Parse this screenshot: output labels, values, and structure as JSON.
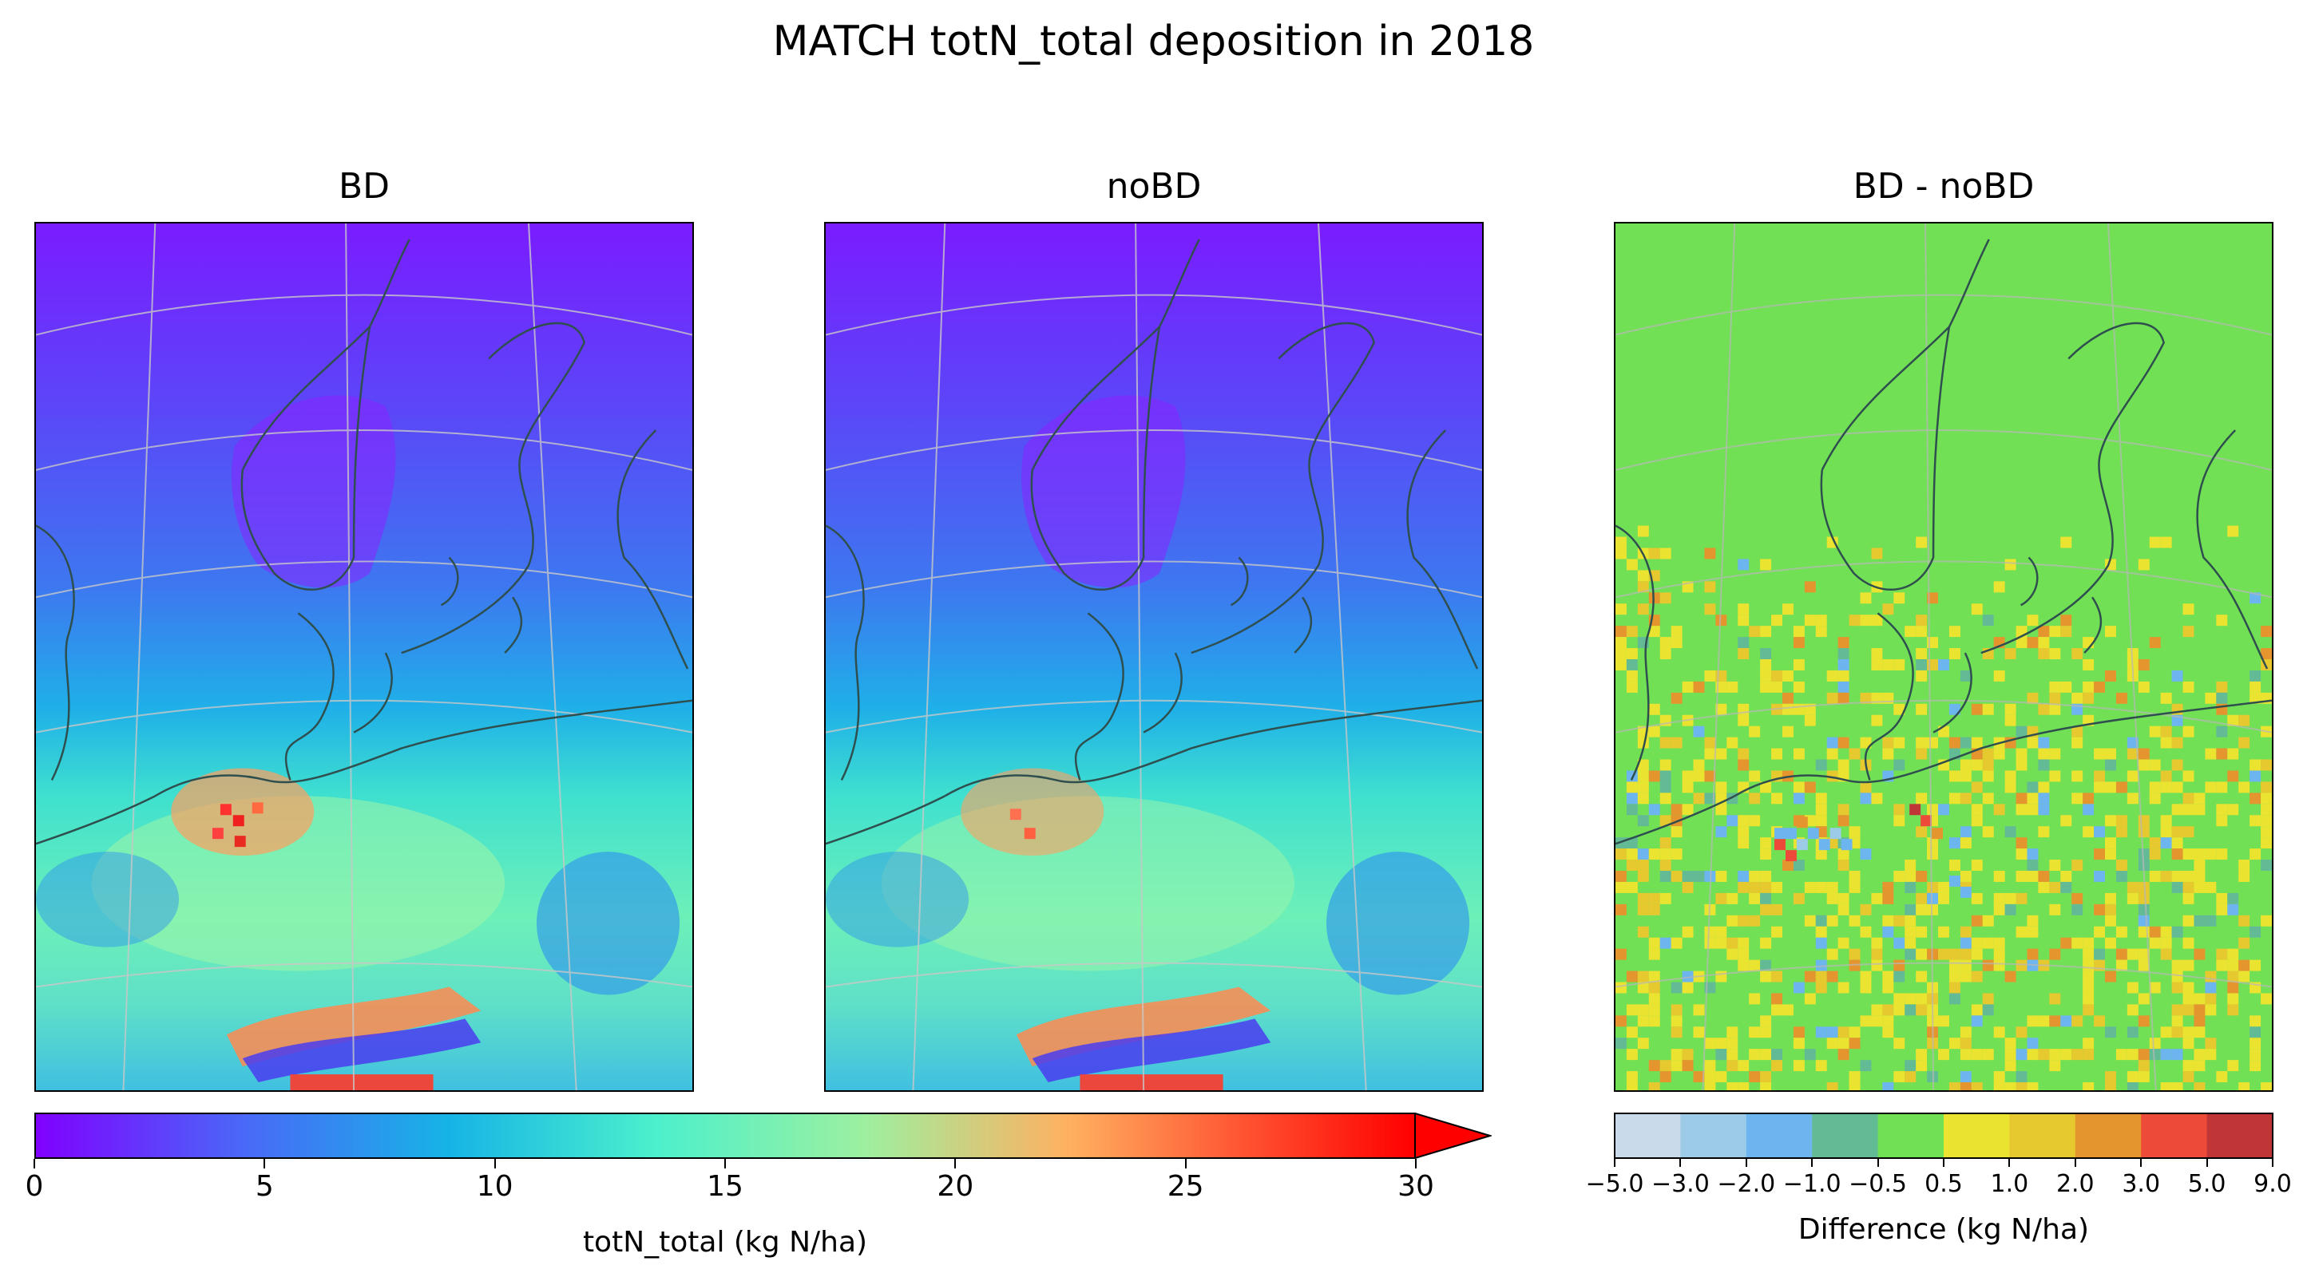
{
  "figure": {
    "title": "MATCH totN_total deposition in 2018"
  },
  "panels": [
    {
      "id": "bd",
      "title": "BD",
      "type": "deposition"
    },
    {
      "id": "nobd",
      "title": "noBD",
      "type": "deposition"
    },
    {
      "id": "diff",
      "title": "BD - noBD",
      "type": "difference"
    }
  ],
  "colorbar_main": {
    "label": "totN_total (kg N/ha)",
    "ticks": [
      "0",
      "5",
      "10",
      "15",
      "20",
      "25",
      "30"
    ],
    "range": [
      0,
      30
    ],
    "extend": "max",
    "colormap": "rainbow"
  },
  "colorbar_diff": {
    "label": "Difference (kg N/ha)",
    "ticks": [
      "−5.0",
      "−3.0",
      "−2.0",
      "−1.0",
      "−0.5",
      "0.5",
      "1.0",
      "2.0",
      "3.0",
      "5.0",
      "9.0"
    ],
    "colors": [
      "#c9daea",
      "#9ccbe8",
      "#6cb5ee",
      "#63bb95",
      "#72e055",
      "#eae431",
      "#e5c92f",
      "#e5952e",
      "#ee4a3a",
      "#c03535"
    ]
  },
  "colors": {
    "land_outline": "#2f4f4f",
    "graticule": "#c8c8c8"
  }
}
